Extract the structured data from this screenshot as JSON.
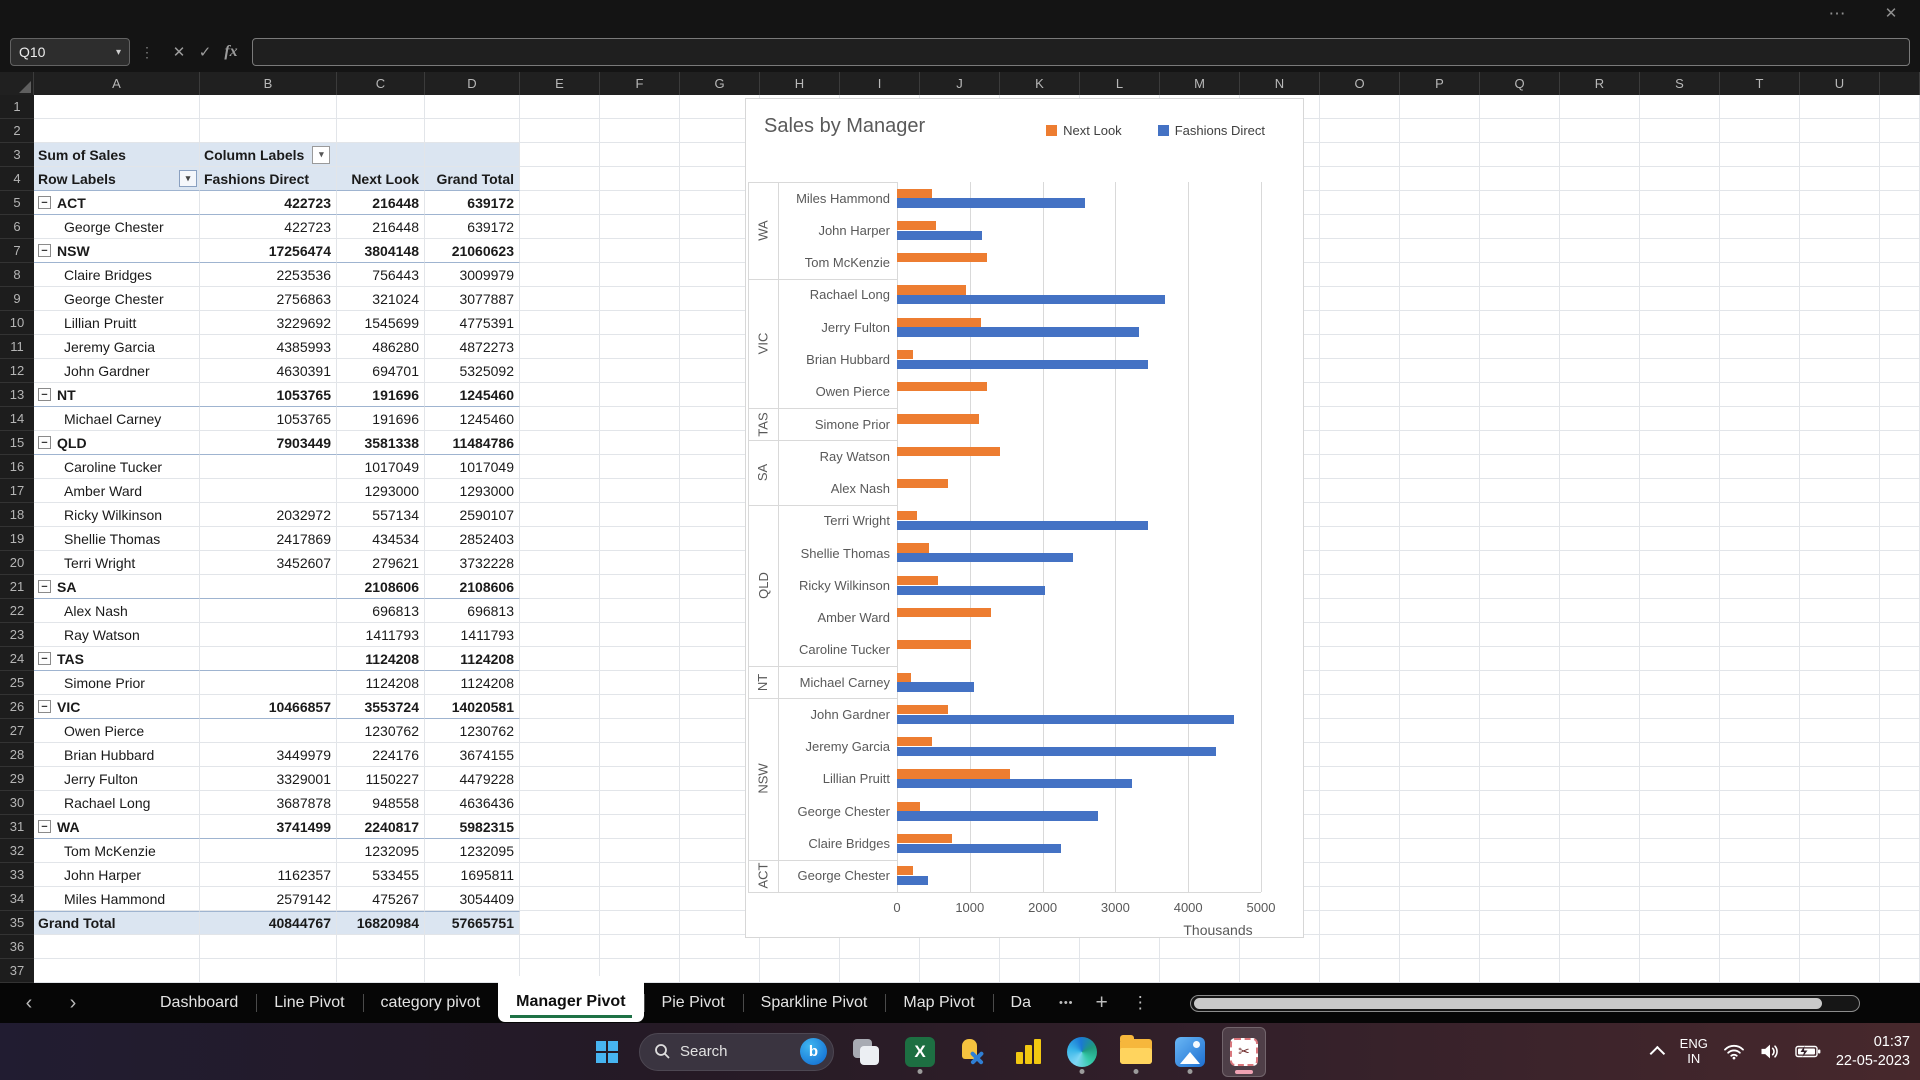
{
  "formula_bar": {
    "name_box_value": "Q10",
    "formula_value": "",
    "fx_label": "fx"
  },
  "spreadsheet": {
    "column_letters": [
      "A",
      "B",
      "C",
      "D",
      "E",
      "F",
      "G",
      "H",
      "I",
      "J",
      "K",
      "L",
      "M",
      "N",
      "O",
      "P",
      "Q",
      "R",
      "S",
      "T",
      "U"
    ],
    "row_count": 37,
    "pivot_table": {
      "title_cell": "Sum of Sales",
      "column_labels_cell": "Column Labels",
      "row_labels_cell": "Row Labels",
      "col_headers": [
        "Fashions Direct",
        "Next Look",
        "Grand Total"
      ],
      "rows": [
        {
          "r": 5,
          "label": "ACT",
          "level": "state",
          "fd": "422723",
          "nl": "216448",
          "gt": "639172"
        },
        {
          "r": 6,
          "label": "George Chester",
          "level": "manager",
          "fd": "422723",
          "nl": "216448",
          "gt": "639172"
        },
        {
          "r": 7,
          "label": "NSW",
          "level": "state",
          "fd": "17256474",
          "nl": "3804148",
          "gt": "21060623"
        },
        {
          "r": 8,
          "label": "Claire Bridges",
          "level": "manager",
          "fd": "2253536",
          "nl": "756443",
          "gt": "3009979"
        },
        {
          "r": 9,
          "label": "George Chester",
          "level": "manager",
          "fd": "2756863",
          "nl": "321024",
          "gt": "3077887"
        },
        {
          "r": 10,
          "label": "Lillian Pruitt",
          "level": "manager",
          "fd": "3229692",
          "nl": "1545699",
          "gt": "4775391"
        },
        {
          "r": 11,
          "label": "Jeremy Garcia",
          "level": "manager",
          "fd": "4385993",
          "nl": "486280",
          "gt": "4872273"
        },
        {
          "r": 12,
          "label": "John Gardner",
          "level": "manager",
          "fd": "4630391",
          "nl": "694701",
          "gt": "5325092"
        },
        {
          "r": 13,
          "label": "NT",
          "level": "state",
          "fd": "1053765",
          "nl": "191696",
          "gt": "1245460"
        },
        {
          "r": 14,
          "label": "Michael Carney",
          "level": "manager",
          "fd": "1053765",
          "nl": "191696",
          "gt": "1245460"
        },
        {
          "r": 15,
          "label": "QLD",
          "level": "state",
          "fd": "7903449",
          "nl": "3581338",
          "gt": "11484786"
        },
        {
          "r": 16,
          "label": "Caroline Tucker",
          "level": "manager",
          "fd": "",
          "nl": "1017049",
          "gt": "1017049"
        },
        {
          "r": 17,
          "label": "Amber Ward",
          "level": "manager",
          "fd": "",
          "nl": "1293000",
          "gt": "1293000"
        },
        {
          "r": 18,
          "label": "Ricky Wilkinson",
          "level": "manager",
          "fd": "2032972",
          "nl": "557134",
          "gt": "2590107"
        },
        {
          "r": 19,
          "label": "Shellie Thomas",
          "level": "manager",
          "fd": "2417869",
          "nl": "434534",
          "gt": "2852403"
        },
        {
          "r": 20,
          "label": "Terri Wright",
          "level": "manager",
          "fd": "3452607",
          "nl": "279621",
          "gt": "3732228"
        },
        {
          "r": 21,
          "label": "SA",
          "level": "state",
          "fd": "",
          "nl": "2108606",
          "gt": "2108606"
        },
        {
          "r": 22,
          "label": "Alex Nash",
          "level": "manager",
          "fd": "",
          "nl": "696813",
          "gt": "696813"
        },
        {
          "r": 23,
          "label": "Ray Watson",
          "level": "manager",
          "fd": "",
          "nl": "1411793",
          "gt": "1411793"
        },
        {
          "r": 24,
          "label": "TAS",
          "level": "state",
          "fd": "",
          "nl": "1124208",
          "gt": "1124208"
        },
        {
          "r": 25,
          "label": "Simone Prior",
          "level": "manager",
          "fd": "",
          "nl": "1124208",
          "gt": "1124208"
        },
        {
          "r": 26,
          "label": "VIC",
          "level": "state",
          "fd": "10466857",
          "nl": "3553724",
          "gt": "14020581"
        },
        {
          "r": 27,
          "label": "Owen Pierce",
          "level": "manager",
          "fd": "",
          "nl": "1230762",
          "gt": "1230762"
        },
        {
          "r": 28,
          "label": "Brian Hubbard",
          "level": "manager",
          "fd": "3449979",
          "nl": "224176",
          "gt": "3674155"
        },
        {
          "r": 29,
          "label": "Jerry Fulton",
          "level": "manager",
          "fd": "3329001",
          "nl": "1150227",
          "gt": "4479228"
        },
        {
          "r": 30,
          "label": "Rachael Long",
          "level": "manager",
          "fd": "3687878",
          "nl": "948558",
          "gt": "4636436"
        },
        {
          "r": 31,
          "label": "WA",
          "level": "state",
          "fd": "3741499",
          "nl": "2240817",
          "gt": "5982315"
        },
        {
          "r": 32,
          "label": "Tom McKenzie",
          "level": "manager",
          "fd": "",
          "nl": "1232095",
          "gt": "1232095"
        },
        {
          "r": 33,
          "label": "John Harper",
          "level": "manager",
          "fd": "1162357",
          "nl": "533455",
          "gt": "1695811"
        },
        {
          "r": 34,
          "label": "Miles Hammond",
          "level": "manager",
          "fd": "2579142",
          "nl": "475267",
          "gt": "3054409"
        },
        {
          "r": 35,
          "label": "Grand Total",
          "level": "grand",
          "fd": "40844767",
          "nl": "16820984",
          "gt": "57665751"
        }
      ]
    }
  },
  "chart_data": {
    "type": "bar",
    "orientation": "horizontal",
    "title": "Sales by Manager",
    "legend": [
      "Next Look",
      "Fashions Direct"
    ],
    "colors": {
      "next_look": "#ED7D31",
      "fashions_direct": "#4472C4"
    },
    "x_axis": {
      "tick_labels": [
        "0",
        "1000",
        "2000",
        "3000",
        "4000",
        "5000"
      ],
      "max": 5000000,
      "unit_label": "Thousands"
    },
    "groups": [
      {
        "state": "WA",
        "managers": [
          {
            "name": "Miles Hammond",
            "next_look": 475267,
            "fashions_direct": 2579142
          },
          {
            "name": "John Harper",
            "next_look": 533455,
            "fashions_direct": 1162357
          },
          {
            "name": "Tom McKenzie",
            "next_look": 1232095,
            "fashions_direct": 0
          }
        ]
      },
      {
        "state": "VIC",
        "managers": [
          {
            "name": "Rachael Long",
            "next_look": 948558,
            "fashions_direct": 3687878
          },
          {
            "name": "Jerry Fulton",
            "next_look": 1150227,
            "fashions_direct": 3329001
          },
          {
            "name": "Brian Hubbard",
            "next_look": 224176,
            "fashions_direct": 3449979
          },
          {
            "name": "Owen Pierce",
            "next_look": 1230762,
            "fashions_direct": 0
          }
        ]
      },
      {
        "state": "TAS",
        "managers": [
          {
            "name": "Simone Prior",
            "next_look": 1124208,
            "fashions_direct": 0
          }
        ]
      },
      {
        "state": "SA",
        "managers": [
          {
            "name": "Ray Watson",
            "next_look": 1411793,
            "fashions_direct": 0
          },
          {
            "name": "Alex Nash",
            "next_look": 696813,
            "fashions_direct": 0
          }
        ]
      },
      {
        "state": "QLD",
        "managers": [
          {
            "name": "Terri Wright",
            "next_look": 279621,
            "fashions_direct": 3452607
          },
          {
            "name": "Shellie Thomas",
            "next_look": 434534,
            "fashions_direct": 2417869
          },
          {
            "name": "Ricky Wilkinson",
            "next_look": 557134,
            "fashions_direct": 2032972
          },
          {
            "name": "Amber Ward",
            "next_look": 1293000,
            "fashions_direct": 0
          },
          {
            "name": "Caroline Tucker",
            "next_look": 1017049,
            "fashions_direct": 0
          }
        ]
      },
      {
        "state": "NT",
        "managers": [
          {
            "name": "Michael Carney",
            "next_look": 191696,
            "fashions_direct": 1053765
          }
        ]
      },
      {
        "state": "NSW",
        "managers": [
          {
            "name": "John Gardner",
            "next_look": 694701,
            "fashions_direct": 4630391
          },
          {
            "name": "Jeremy Garcia",
            "next_look": 486280,
            "fashions_direct": 4385993
          },
          {
            "name": "Lillian Pruitt",
            "next_look": 1545699,
            "fashions_direct": 3229692
          },
          {
            "name": "George Chester",
            "next_look": 321024,
            "fashions_direct": 2756863
          },
          {
            "name": "Claire Bridges",
            "next_look": 756443,
            "fashions_direct": 2253536
          }
        ]
      },
      {
        "state": "ACT",
        "managers": [
          {
            "name": "George Chester",
            "next_look": 216448,
            "fashions_direct": 422723
          }
        ]
      }
    ]
  },
  "sheet_tabs": {
    "tabs": [
      {
        "label": "Dashboard",
        "active": false
      },
      {
        "label": "Line Pivot",
        "active": false
      },
      {
        "label": "category pivot",
        "active": false
      },
      {
        "label": "Manager Pivot",
        "active": true
      },
      {
        "label": "Pie Pivot",
        "active": false
      },
      {
        "label": "Sparkline Pivot",
        "active": false
      },
      {
        "label": "Map Pivot",
        "active": false
      },
      {
        "label": "Da",
        "active": false
      }
    ]
  },
  "taskbar": {
    "search_placeholder": "Search",
    "language_line1": "ENG",
    "language_line2": "IN",
    "time": "01:37",
    "date": "22-05-2023"
  }
}
